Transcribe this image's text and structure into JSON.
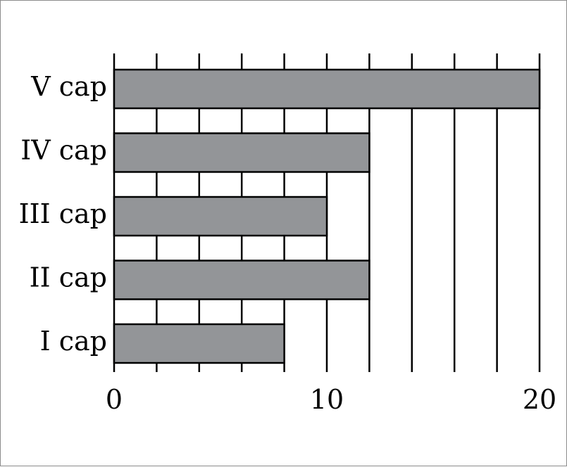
{
  "chart_data": {
    "type": "bar",
    "orientation": "horizontal",
    "categories": [
      "V cap",
      "IV cap",
      "III cap",
      "II cap",
      "I cap"
    ],
    "values": [
      20,
      12,
      10,
      12,
      8
    ],
    "xlim": [
      0,
      20
    ],
    "x_ticks": [
      0,
      10,
      20
    ],
    "grid_step": 2,
    "grid": true,
    "colors": {
      "bar_fill": "#939598",
      "bar_stroke": "#000000",
      "grid": "#000000"
    },
    "title": "",
    "xlabel": "",
    "ylabel": ""
  }
}
